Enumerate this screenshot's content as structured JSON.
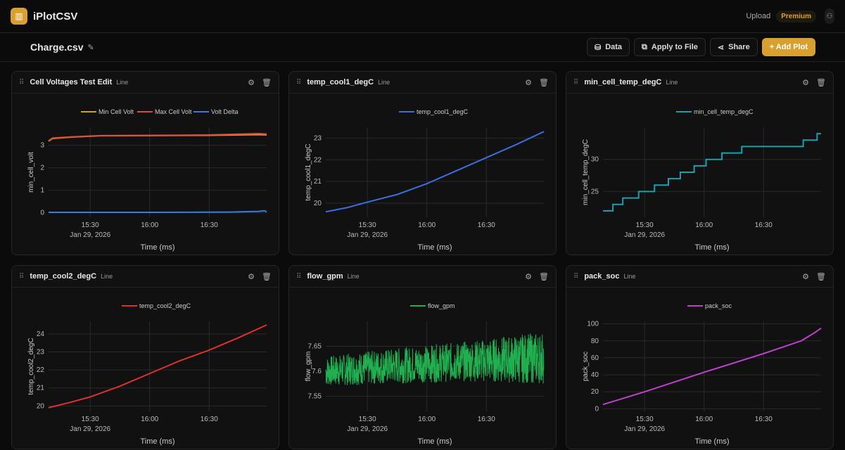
{
  "app": {
    "name": "iPlotCSV",
    "upload": "Upload",
    "premium": "Premium"
  },
  "file": {
    "name": "Charge.csv"
  },
  "toolbar": {
    "data": "Data",
    "apply": "Apply to File",
    "share": "Share",
    "add_plot": "+ Add Plot"
  },
  "chart_data": [
    {
      "type": "line",
      "title": "Cell Voltages Test Edit",
      "plot_type": "Line",
      "ylabel": "min_cell_volt",
      "xlabel": "Time (ms)",
      "date_label": "Jan 29, 2026",
      "xticks": [
        "15:30",
        "16:00",
        "16:30"
      ],
      "yticks": [
        0,
        1,
        2,
        3
      ],
      "ylim": [
        -0.2,
        3.8
      ],
      "series": [
        {
          "name": "Min Cell Volt",
          "color": "#d4a020",
          "points": [
            [
              9,
              3.18
            ],
            [
              11,
              3.3
            ],
            [
              20,
              3.36
            ],
            [
              35,
              3.42
            ],
            [
              60,
              3.43
            ],
            [
              90,
              3.44
            ],
            [
              115,
              3.47
            ],
            [
              119,
              3.46
            ]
          ]
        },
        {
          "name": "Max Cell Volt",
          "color": "#e04a3a",
          "points": [
            [
              9,
              3.2
            ],
            [
              11,
              3.32
            ],
            [
              20,
              3.37
            ],
            [
              35,
              3.43
            ],
            [
              60,
              3.44
            ],
            [
              90,
              3.46
            ],
            [
              115,
              3.52
            ],
            [
              119,
              3.5
            ]
          ]
        },
        {
          "name": "Volt Delta",
          "color": "#3a7be0",
          "points": [
            [
              9,
              0.02
            ],
            [
              60,
              0.02
            ],
            [
              100,
              0.03
            ],
            [
              115,
              0.06
            ],
            [
              118,
              0.09
            ],
            [
              119,
              0.04
            ]
          ]
        }
      ]
    },
    {
      "type": "line",
      "title": "temp_cool1_degC",
      "plot_type": "Line",
      "ylabel": "temp_cool1_degC",
      "xlabel": "Time (ms)",
      "date_label": "Jan 29, 2026",
      "xticks": [
        "15:30",
        "16:00",
        "16:30"
      ],
      "yticks": [
        20,
        21,
        22,
        23
      ],
      "ylim": [
        19.35,
        23.5
      ],
      "series": [
        {
          "name": "temp_cool1_degC",
          "color": "#3a6fe0",
          "points": [
            [
              9,
              19.6
            ],
            [
              20,
              19.8
            ],
            [
              30,
              20.05
            ],
            [
              45,
              20.4
            ],
            [
              60,
              20.9
            ],
            [
              75,
              21.5
            ],
            [
              90,
              22.1
            ],
            [
              105,
              22.7
            ],
            [
              119,
              23.3
            ]
          ]
        }
      ]
    },
    {
      "type": "line",
      "title": "min_cell_temp_degC",
      "plot_type": "Line",
      "ylabel": "min_cell_temp_degC",
      "xlabel": "Time (ms)",
      "date_label": "Jan 29, 2026",
      "xticks": [
        "15:30",
        "16:00",
        "16:30"
      ],
      "yticks": [
        25,
        30
      ],
      "ylim": [
        21,
        35
      ],
      "step": true,
      "series": [
        {
          "name": "min_cell_temp_degC",
          "color": "#1aa0b0",
          "points": [
            [
              9,
              22
            ],
            [
              14,
              23
            ],
            [
              19,
              24
            ],
            [
              27,
              25
            ],
            [
              35,
              26
            ],
            [
              42,
              27
            ],
            [
              48,
              28
            ],
            [
              55,
              29
            ],
            [
              61,
              30
            ],
            [
              69,
              31
            ],
            [
              79,
              32
            ],
            [
              110,
              33
            ],
            [
              117,
              34
            ],
            [
              119,
              34
            ]
          ]
        }
      ]
    },
    {
      "type": "line",
      "title": "temp_cool2_degC",
      "plot_type": "Line",
      "ylabel": "temp_cool2_degC",
      "xlabel": "Time (ms)",
      "date_label": "Jan 29, 2026",
      "xticks": [
        "15:30",
        "16:00",
        "16:30"
      ],
      "yticks": [
        20,
        21,
        22,
        23,
        24
      ],
      "ylim": [
        19.7,
        24.7
      ],
      "series": [
        {
          "name": "temp_cool2_degC",
          "color": "#e03030",
          "points": [
            [
              9,
              19.9
            ],
            [
              20,
              20.2
            ],
            [
              30,
              20.5
            ],
            [
              45,
              21.1
            ],
            [
              60,
              21.8
            ],
            [
              75,
              22.5
            ],
            [
              90,
              23.1
            ],
            [
              105,
              23.8
            ],
            [
              119,
              24.5
            ]
          ]
        }
      ]
    },
    {
      "type": "line",
      "title": "flow_gpm",
      "plot_type": "Line",
      "ylabel": "flow_gpm",
      "xlabel": "Time (ms)",
      "date_label": "Jan 29, 2026",
      "xticks": [
        "15:30",
        "16:00",
        "16:30"
      ],
      "yticks": [
        7.55,
        7.6,
        7.65
      ],
      "ylim": [
        7.52,
        7.7
      ],
      "noise": true,
      "series": [
        {
          "name": "flow_gpm",
          "color": "#20b050",
          "points": [
            [
              9,
              7.57,
              7.63
            ],
            [
              40,
              7.575,
              7.645
            ],
            [
              80,
              7.58,
              7.66
            ],
            [
              119,
              7.575,
              7.68
            ]
          ]
        }
      ]
    },
    {
      "type": "line",
      "title": "pack_soc",
      "plot_type": "Line",
      "ylabel": "pack_soc",
      "xlabel": "Time (ms)",
      "date_label": "Jan 29, 2026",
      "xticks": [
        "15:30",
        "16:00",
        "16:30"
      ],
      "yticks": [
        0,
        20,
        40,
        60,
        80,
        100
      ],
      "ylim": [
        -3,
        103
      ],
      "series": [
        {
          "name": "pack_soc",
          "color": "#c040d0",
          "points": [
            [
              9,
              5
            ],
            [
              30,
              20
            ],
            [
              60,
              43
            ],
            [
              90,
              65
            ],
            [
              109,
              80
            ],
            [
              116,
              90
            ],
            [
              119,
              95
            ]
          ]
        }
      ]
    }
  ]
}
